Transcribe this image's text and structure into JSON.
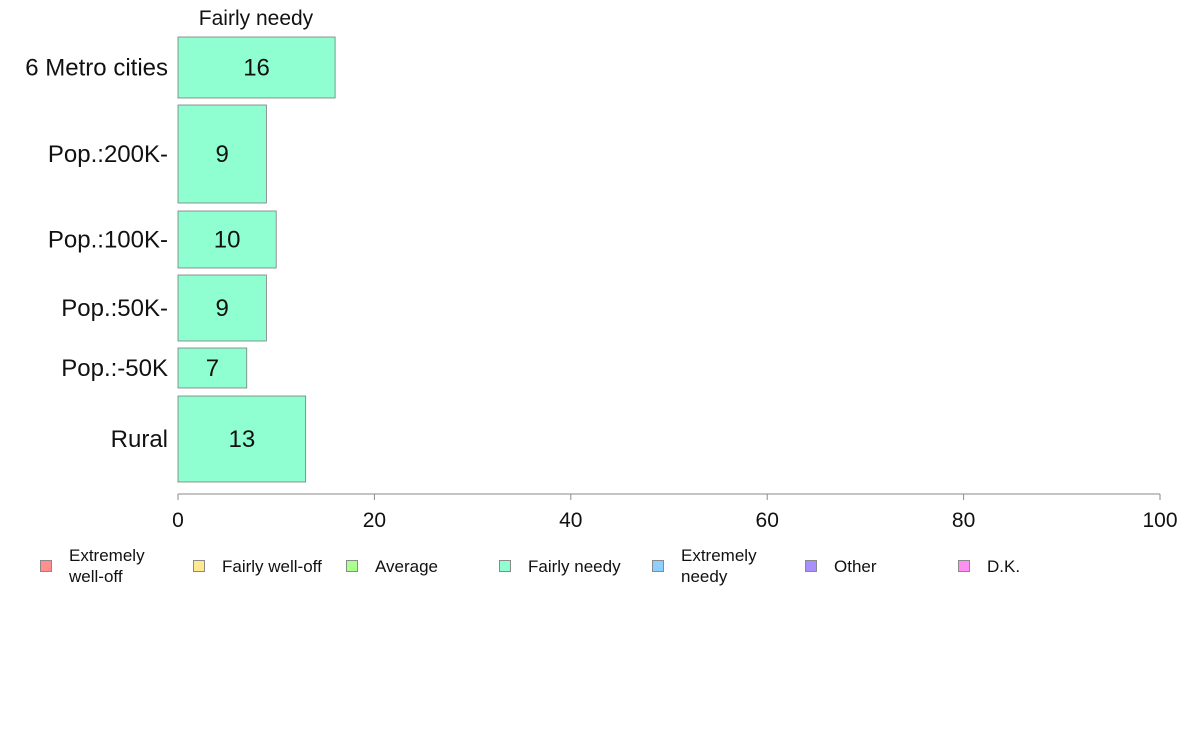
{
  "chart_data": {
    "type": "bar",
    "orientation": "horizontal",
    "title": "Fairly needy",
    "xlabel": "",
    "ylabel": "",
    "categories": [
      "6 Metro cities",
      "Pop.:200K-",
      "Pop.:100K-",
      "Pop.:50K-",
      "Pop.:-50K",
      "Rural"
    ],
    "series": [
      {
        "name": "Fairly needy",
        "values": [
          16,
          9,
          10,
          9,
          7,
          13
        ],
        "color": "#8fffd2"
      }
    ],
    "xlim": [
      0,
      100
    ],
    "xticks": [
      "0",
      "20",
      "40",
      "60",
      "80",
      "100"
    ],
    "grid": false,
    "legend_position": "bottom",
    "legend": [
      {
        "label": "Extremely well-off",
        "color": "#ff8f8f"
      },
      {
        "label": "Fairly well-off",
        "color": "#ffe88f"
      },
      {
        "label": "Average",
        "color": "#aaff8f"
      },
      {
        "label": "Fairly needy",
        "color": "#8fffd2"
      },
      {
        "label": "Extremely needy",
        "color": "#8fcfff"
      },
      {
        "label": "Other",
        "color": "#a88fff"
      },
      {
        "label": "D.K.",
        "color": "#ff8ff0"
      }
    ]
  }
}
